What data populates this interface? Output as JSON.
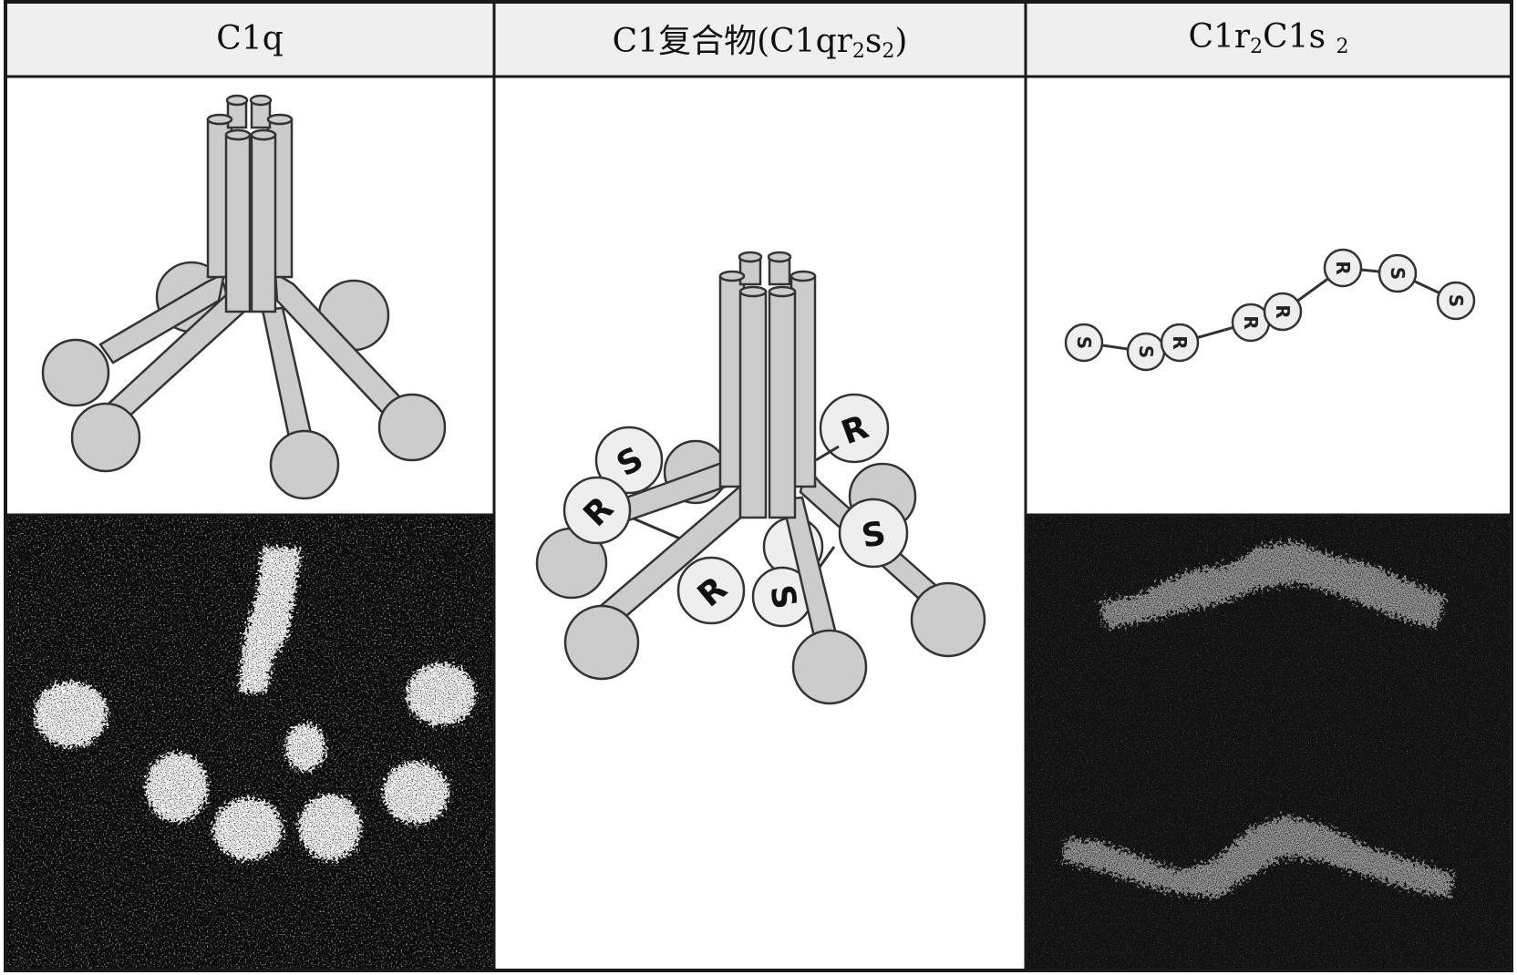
{
  "columns": [
    {
      "id": "c1q",
      "title": "C1q"
    },
    {
      "id": "c1complex",
      "title_main": "C1复合物(C1qr",
      "title_sub1": "2",
      "title_mid": "s",
      "title_sub2": "2",
      "title_end": ")"
    },
    {
      "id": "c1r2c1s2",
      "title_a": "C1r",
      "title_sub1": "2",
      "title_b": "C1s ",
      "title_sub2": "2"
    }
  ],
  "complex_labels": {
    "r_top_right": "R",
    "s_top_left": "S",
    "r_left": "R",
    "r_bottom": "R",
    "s_right": "S",
    "s_bottom": "S"
  },
  "chain_labels": [
    "S",
    "S",
    "R",
    "R",
    "R",
    "R",
    "S",
    "S"
  ],
  "colors": {
    "shape_fill": "#cccccc",
    "shape_stroke": "#333333",
    "micrograph_bg": "#0c0c0c",
    "header_bg": "#efefef"
  }
}
